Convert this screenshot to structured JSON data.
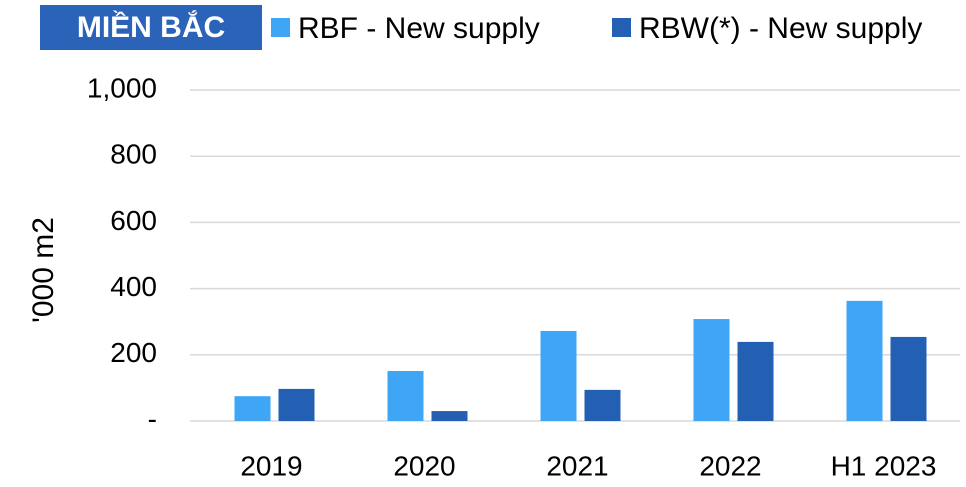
{
  "chart_data": {
    "type": "bar",
    "title": "MIỀN BẮC",
    "y_label": "'000 m2",
    "categories": [
      "2019",
      "2020",
      "2021",
      "2022",
      "H1 2023"
    ],
    "series": [
      {
        "name": "RBF - New supply",
        "color": "#3ea6f5",
        "values": [
          75,
          151,
          272,
          308,
          363
        ]
      },
      {
        "name": "RBW(*) - New supply",
        "color": "#235fb2",
        "values": [
          97,
          30,
          94,
          239,
          254
        ]
      }
    ],
    "ylim": [
      0,
      1000
    ],
    "yticks": [
      {
        "value": 0,
        "label": "-"
      },
      200,
      400,
      600,
      800,
      {
        "value": 1000,
        "label": "1,000"
      }
    ],
    "grid": true,
    "title_color": "#2b63b8"
  }
}
